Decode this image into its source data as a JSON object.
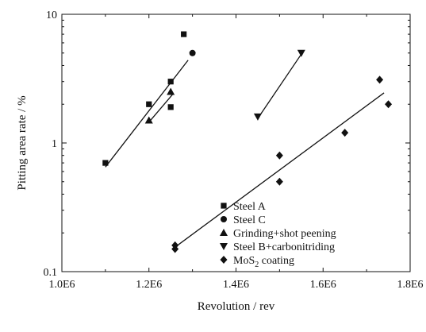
{
  "chart_data": {
    "type": "scatter",
    "xlabel": "Revolution / rev",
    "ylabel": "Pitting area rate / %",
    "xlim": [
      1000000,
      1800000
    ],
    "ylim": [
      0.1,
      10
    ],
    "yscale": "log",
    "x_ticks": [
      {
        "value": 1000000,
        "label": "1.0E6"
      },
      {
        "value": 1200000,
        "label": "1.2E6"
      },
      {
        "value": 1400000,
        "label": "1.4E6"
      },
      {
        "value": 1600000,
        "label": "1.6E6"
      },
      {
        "value": 1800000,
        "label": "1.8E6"
      }
    ],
    "y_ticks": [
      {
        "value": 0.1,
        "label": "0.1"
      },
      {
        "value": 1,
        "label": "1"
      },
      {
        "value": 10,
        "label": "10"
      }
    ],
    "grid": false,
    "legend": {
      "position": "bottom-center",
      "entries": [
        {
          "marker": "square",
          "text": "Steel A"
        },
        {
          "marker": "circle",
          "text": "Steel C"
        },
        {
          "marker": "triangle-up",
          "text": "Grinding+shot peening"
        },
        {
          "marker": "triangle-down",
          "text": "Steel B+carbonitriding"
        },
        {
          "marker": "diamond",
          "text": "MoS",
          "subscript": "2",
          "suffix": " coating"
        }
      ]
    },
    "series": [
      {
        "legend_index": 0,
        "marker": "square",
        "points": [
          {
            "x": 1100000,
            "y": 0.7
          },
          {
            "x": 1200000,
            "y": 2.0
          },
          {
            "x": 1250000,
            "y": 3.0
          },
          {
            "x": 1250000,
            "y": 1.9
          },
          {
            "x": 1280000,
            "y": 7.0
          }
        ]
      },
      {
        "legend_index": 1,
        "marker": "circle",
        "points": [
          {
            "x": 1300000,
            "y": 5.0
          }
        ]
      },
      {
        "legend_index": 2,
        "marker": "triangle-up",
        "points": [
          {
            "x": 1200000,
            "y": 1.5
          },
          {
            "x": 1250000,
            "y": 2.5
          }
        ]
      },
      {
        "legend_index": 3,
        "marker": "triangle-down",
        "points": [
          {
            "x": 1450000,
            "y": 1.6
          },
          {
            "x": 1550000,
            "y": 5.0
          }
        ]
      },
      {
        "legend_index": 4,
        "marker": "diamond",
        "points": [
          {
            "x": 1260000,
            "y": 0.16
          },
          {
            "x": 1260000,
            "y": 0.15
          },
          {
            "x": 1500000,
            "y": 0.8
          },
          {
            "x": 1500000,
            "y": 0.5
          },
          {
            "x": 1650000,
            "y": 1.2
          },
          {
            "x": 1730000,
            "y": 3.1
          },
          {
            "x": 1750000,
            "y": 2.0
          }
        ]
      }
    ],
    "fit_lines": [
      {
        "x": [
          1100000,
          1290000
        ],
        "y": [
          0.65,
          4.4
        ]
      },
      {
        "x": [
          1200000,
          1255000
        ],
        "y": [
          1.45,
          2.4
        ]
      },
      {
        "x": [
          1450000,
          1550000
        ],
        "y": [
          1.55,
          4.9
        ]
      },
      {
        "x": [
          1260000,
          1740000
        ],
        "y": [
          0.155,
          2.45
        ]
      }
    ]
  }
}
